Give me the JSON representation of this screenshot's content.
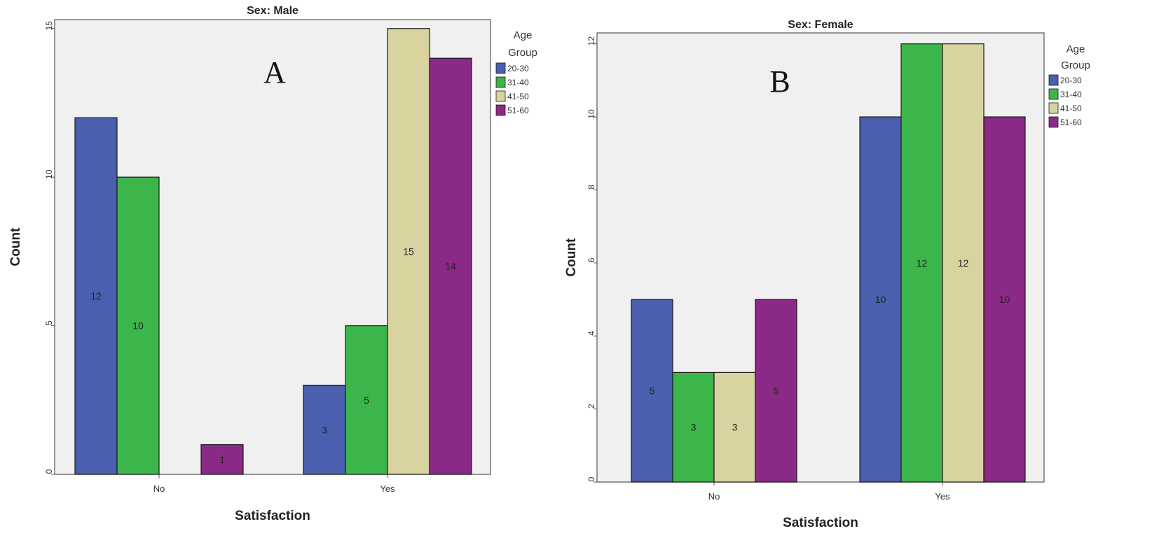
{
  "chart_data": [
    {
      "type": "bar",
      "panel_letter": "A",
      "title": "Sex: Male",
      "xlabel": "Satisfaction",
      "ylabel": "Count",
      "categories": [
        "No",
        "Yes"
      ],
      "ylim": [
        0,
        15.3
      ],
      "yticks": [
        0,
        5,
        10,
        15
      ],
      "legend_title": [
        "Age",
        "Group"
      ],
      "legend_position": "right",
      "series": [
        {
          "name": "20-30",
          "color": "#4a5fad",
          "values": [
            12,
            3
          ]
        },
        {
          "name": "31-40",
          "color": "#3cb64a",
          "values": [
            10,
            5
          ]
        },
        {
          "name": "41-50",
          "color": "#d9d3a0",
          "values": [
            0,
            15
          ]
        },
        {
          "name": "51-60",
          "color": "#8b2a86",
          "values": [
            1,
            14
          ]
        }
      ]
    },
    {
      "type": "bar",
      "panel_letter": "B",
      "title": "Sex: Female",
      "xlabel": "Satisfaction",
      "ylabel": "Count",
      "categories": [
        "No",
        "Yes"
      ],
      "ylim": [
        0,
        12.3
      ],
      "yticks": [
        0,
        2,
        4,
        6,
        8,
        10,
        12
      ],
      "legend_title": [
        "Age",
        "Group"
      ],
      "legend_position": "right",
      "series": [
        {
          "name": "20-30",
          "color": "#4a5fad",
          "values": [
            5,
            10
          ]
        },
        {
          "name": "31-40",
          "color": "#3cb64a",
          "values": [
            3,
            12
          ]
        },
        {
          "name": "41-50",
          "color": "#d9d3a0",
          "values": [
            3,
            12
          ]
        },
        {
          "name": "51-60",
          "color": "#8b2a86",
          "values": [
            5,
            10
          ]
        }
      ]
    }
  ]
}
